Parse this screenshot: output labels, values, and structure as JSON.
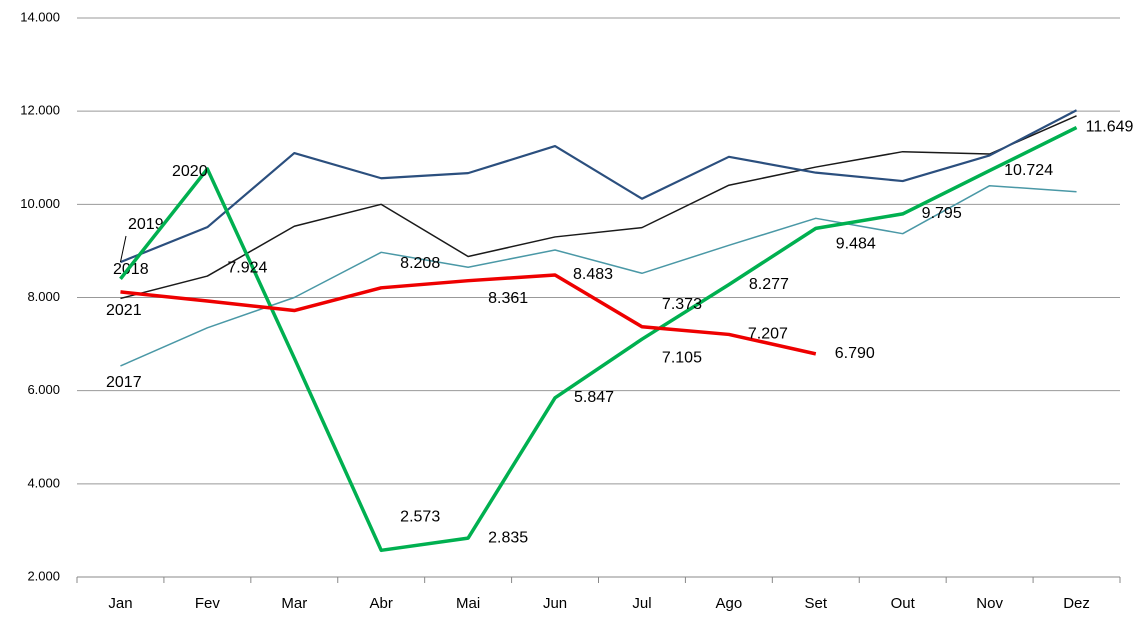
{
  "chart_data": {
    "type": "line",
    "categories": [
      "Jan",
      "Fev",
      "Mar",
      "Abr",
      "Mai",
      "Jun",
      "Jul",
      "Ago",
      "Set",
      "Out",
      "Nov",
      "Dez"
    ],
    "ylim": [
      2000,
      14000
    ],
    "yticks": [
      {
        "value": 2000,
        "label": "2.000"
      },
      {
        "value": 4000,
        "label": "4.000"
      },
      {
        "value": 6000,
        "label": "6.000"
      },
      {
        "value": 8000,
        "label": "8.000"
      },
      {
        "value": 10000,
        "label": "10.000"
      },
      {
        "value": 12000,
        "label": "12.000"
      },
      {
        "value": 14000,
        "label": "14.000"
      }
    ],
    "grid": true,
    "series": [
      {
        "name": "2017",
        "color": "#4a98a6",
        "width": 1.5,
        "values": [
          6530,
          7350,
          8000,
          8970,
          8650,
          9020,
          8520,
          9120,
          9700,
          9370,
          10400,
          10270
        ]
      },
      {
        "name": "2018",
        "color": "#1a1a1a",
        "width": 1.5,
        "values": [
          7980,
          8460,
          9530,
          10000,
          8880,
          9300,
          9500,
          10410,
          10800,
          11130,
          11080,
          11900
        ]
      },
      {
        "name": "2019",
        "color": "#2b4f7e",
        "width": 2.2,
        "values": [
          8760,
          9510,
          11100,
          10560,
          10670,
          11250,
          10120,
          11020,
          10680,
          10500,
          11050,
          12020
        ]
      },
      {
        "name": "2020",
        "color": "#00b050",
        "width": 3.5,
        "values": [
          8400,
          10760,
          6700,
          2573,
          2835,
          5847,
          7105,
          8277,
          9484,
          9795,
          10724,
          11649
        ],
        "value_labels": [
          null,
          null,
          null,
          "2.573",
          "2.835",
          "5.847",
          "7.105",
          "8.277",
          "9.484",
          "9.795",
          "10.724",
          "11.649"
        ]
      },
      {
        "name": "2021",
        "color": "#ee0000",
        "width": 3.5,
        "values": [
          8120,
          7924,
          7720,
          8208,
          8361,
          8483,
          7373,
          7207,
          6790,
          null,
          null,
          null
        ],
        "value_labels": [
          null,
          "7.924",
          null,
          "8.208",
          "8.361",
          "8.483",
          "7.373",
          "7.207",
          "6.790",
          null,
          null,
          null
        ]
      }
    ]
  }
}
